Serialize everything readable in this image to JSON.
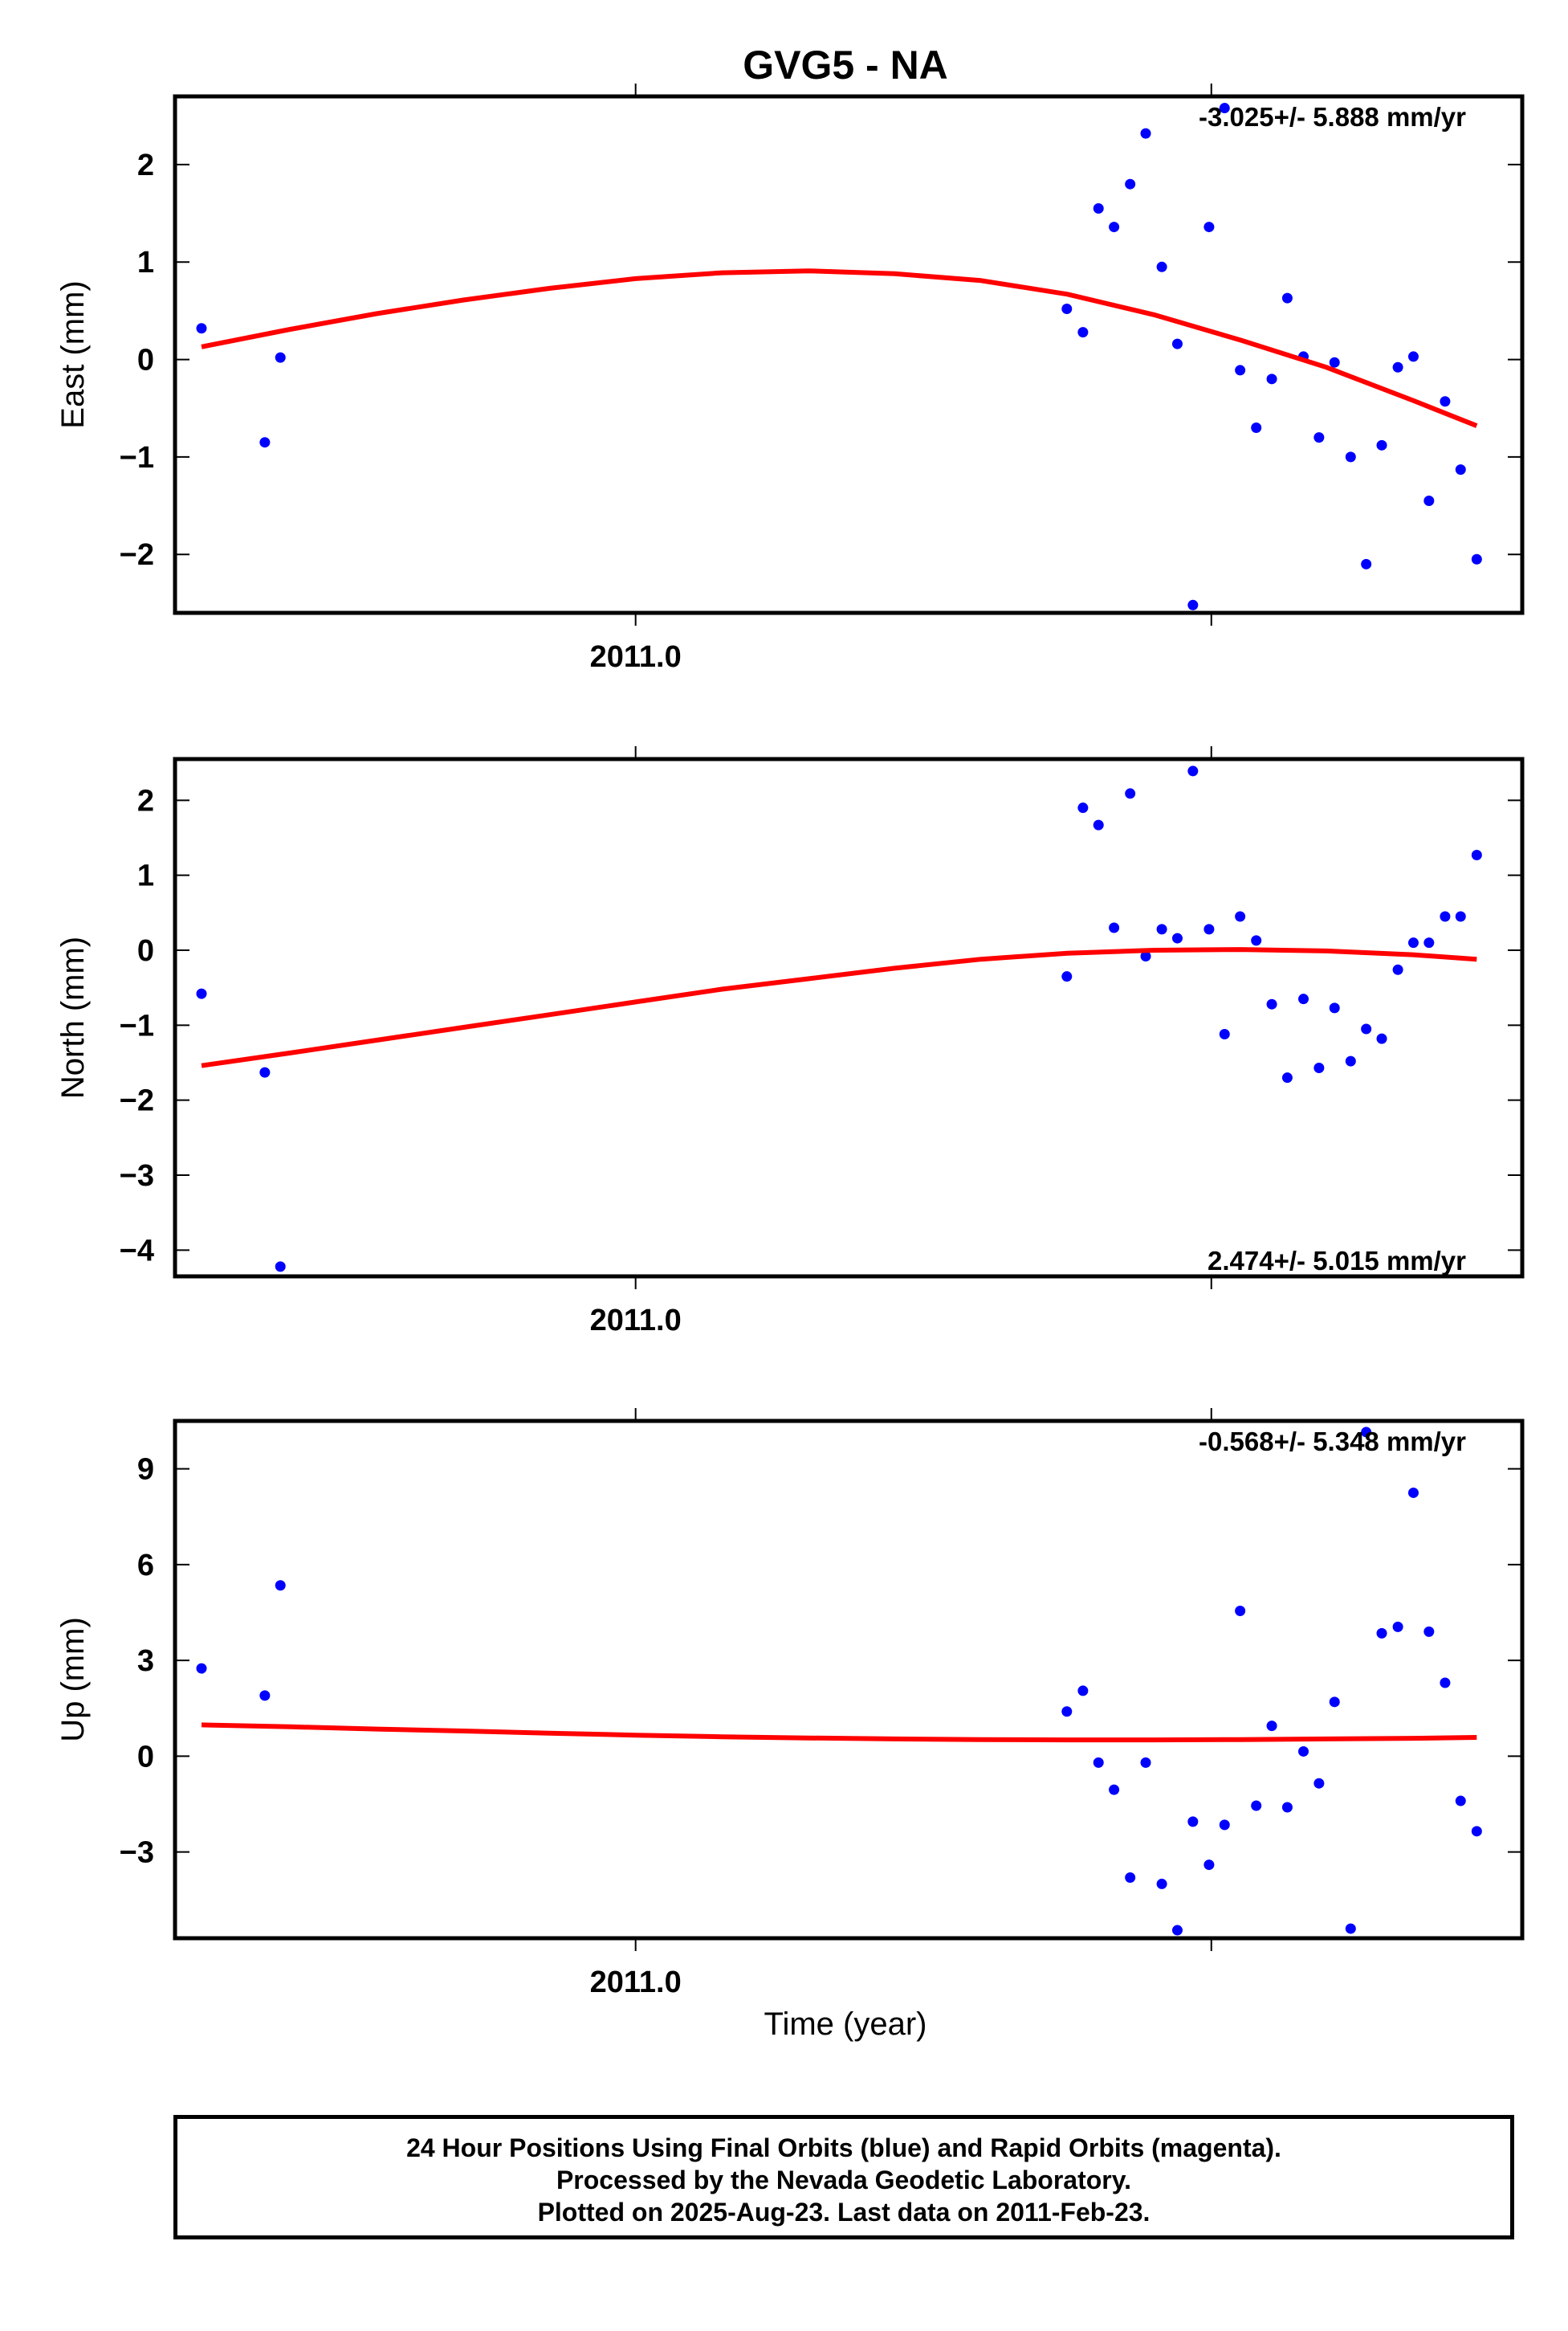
{
  "title": "GVG5 - NA",
  "x_axis_label": "Time (year)",
  "colors": {
    "final_orbits": "#0000ff",
    "rapid_orbits": "#ff00ff",
    "model_curve": "#ff0000"
  },
  "footer": {
    "line1": "24 Hour Positions Using Final Orbits (blue) and Rapid Orbits (magenta).",
    "line2": "Processed by the Nevada Geodetic Laboratory.",
    "line3": "Plotted on 2025-Aug-23. Last data on 2011-Feb-23."
  },
  "chart_data": [
    {
      "type": "scatter",
      "panel": "east",
      "ylabel": "East (mm)",
      "rate_label": "-3.025+/- 5.888 mm/yr",
      "rate_position": "top-right",
      "xlim": [
        2010.92,
        2011.154
      ],
      "ylim": [
        -2.6,
        2.7
      ],
      "xticks": [
        2011.0,
        2011.1
      ],
      "xtick_labels": [
        "2011.0",
        ""
      ],
      "yticks": [
        -2,
        -1,
        0,
        1,
        2
      ],
      "ytick_labels": [
        "−2",
        "−1",
        "0",
        "1",
        "2"
      ],
      "grid": false,
      "series": [
        {
          "x": [
            2010.9246,
            2010.9356,
            2010.9383,
            2011.0749,
            2011.0777,
            2011.0804,
            2011.0831,
            2011.0859,
            2011.0886,
            2011.0914,
            2011.0941,
            2011.0968,
            2011.0996,
            2011.1023,
            2011.105,
            2011.1078,
            2011.1105,
            2011.1132,
            2011.116,
            2011.1187,
            2011.1214,
            2011.1242,
            2011.1269,
            2011.1296,
            2011.1324,
            2011.1351,
            2011.1378,
            2011.1406,
            2011.1433,
            2011.1461
          ],
          "y": [
            0.32,
            -0.85,
            0.02,
            0.52,
            0.28,
            1.55,
            1.36,
            1.8,
            2.32,
            0.95,
            0.16,
            -2.52,
            1.36,
            2.58,
            -0.11,
            -0.7,
            -0.2,
            0.63,
            0.03,
            -0.8,
            -0.03,
            -1.0,
            -2.1,
            -0.88,
            -0.08,
            0.03,
            -1.45,
            -0.43,
            -1.13,
            -2.05
          ]
        }
      ],
      "model": {
        "x": [
          2010.9246,
          2010.94,
          2010.955,
          2010.97,
          2010.985,
          2011.0,
          2011.015,
          2011.03,
          2011.045,
          2011.06,
          2011.075,
          2011.09,
          2011.105,
          2011.12,
          2011.135,
          2011.1461
        ],
        "y": [
          0.13,
          0.31,
          0.47,
          0.61,
          0.73,
          0.83,
          0.89,
          0.91,
          0.88,
          0.81,
          0.67,
          0.46,
          0.2,
          -0.08,
          -0.42,
          -0.68
        ]
      }
    },
    {
      "type": "scatter",
      "panel": "north",
      "ylabel": "North (mm)",
      "rate_label": "2.474+/- 5.015 mm/yr",
      "rate_position": "bottom-right",
      "xlim": [
        2010.92,
        2011.154
      ],
      "ylim": [
        -4.35,
        2.55
      ],
      "xticks": [
        2011.0,
        2011.1
      ],
      "xtick_labels": [
        "2011.0",
        ""
      ],
      "yticks": [
        -4,
        -3,
        -2,
        -1,
        0,
        1,
        2
      ],
      "ytick_labels": [
        "−4",
        "−3",
        "−2",
        "−1",
        "0",
        "1",
        "2"
      ],
      "grid": false,
      "series": [
        {
          "x": [
            2010.9246,
            2010.9356,
            2010.9383,
            2011.0749,
            2011.0777,
            2011.0804,
            2011.0831,
            2011.0859,
            2011.0886,
            2011.0914,
            2011.0941,
            2011.0968,
            2011.0996,
            2011.1023,
            2011.105,
            2011.1078,
            2011.1105,
            2011.1132,
            2011.116,
            2011.1187,
            2011.1214,
            2011.1242,
            2011.1269,
            2011.1296,
            2011.1324,
            2011.1351,
            2011.1378,
            2011.1406,
            2011.1433,
            2011.1461
          ],
          "y": [
            -0.58,
            -1.63,
            -4.22,
            -0.35,
            1.9,
            1.67,
            0.3,
            2.09,
            -0.08,
            0.28,
            0.16,
            2.39,
            0.28,
            -1.12,
            0.45,
            0.13,
            -0.72,
            -1.7,
            -0.65,
            -1.57,
            -0.77,
            -1.48,
            -1.05,
            -1.18,
            -0.26,
            0.1,
            0.1,
            0.45,
            0.45,
            1.27
          ]
        }
      ],
      "model": {
        "x": [
          2010.9246,
          2010.94,
          2010.955,
          2010.97,
          2010.985,
          2011.0,
          2011.015,
          2011.03,
          2011.045,
          2011.06,
          2011.075,
          2011.09,
          2011.105,
          2011.12,
          2011.135,
          2011.1461
        ],
        "y": [
          -1.54,
          -1.37,
          -1.2,
          -1.03,
          -0.86,
          -0.69,
          -0.52,
          -0.38,
          -0.24,
          -0.12,
          -0.04,
          0.0,
          0.01,
          -0.01,
          -0.06,
          -0.12
        ]
      }
    },
    {
      "type": "scatter",
      "panel": "up",
      "ylabel": "Up (mm)",
      "rate_label": "-0.568+/- 5.348 mm/yr",
      "rate_position": "top-right",
      "xlim": [
        2010.92,
        2011.154
      ],
      "ylim": [
        -5.7,
        10.5
      ],
      "xticks": [
        2011.0,
        2011.1
      ],
      "xtick_labels": [
        "2011.0",
        ""
      ],
      "yticks": [
        -3,
        0,
        3,
        6,
        9
      ],
      "ytick_labels": [
        "−3",
        "0",
        "3",
        "6",
        "9"
      ],
      "grid": false,
      "series": [
        {
          "x": [
            2010.9246,
            2010.9356,
            2010.9383,
            2011.0749,
            2011.0777,
            2011.0804,
            2011.0831,
            2011.0859,
            2011.0886,
            2011.0914,
            2011.0941,
            2011.0968,
            2011.0996,
            2011.1023,
            2011.105,
            2011.1078,
            2011.1105,
            2011.1132,
            2011.116,
            2011.1187,
            2011.1214,
            2011.1242,
            2011.1269,
            2011.1296,
            2011.1324,
            2011.1351,
            2011.1378,
            2011.1406,
            2011.1433,
            2011.1461
          ],
          "y": [
            2.75,
            1.9,
            5.35,
            1.4,
            2.05,
            -0.2,
            -1.05,
            -3.8,
            -0.2,
            -4.0,
            -5.45,
            -2.05,
            -3.4,
            -2.15,
            4.55,
            -1.55,
            0.95,
            -1.6,
            0.15,
            -0.85,
            1.7,
            -5.4,
            10.15,
            3.85,
            4.05,
            8.25,
            3.9,
            2.3,
            -1.4,
            -2.35
          ]
        }
      ],
      "model": {
        "x": [
          2010.9246,
          2010.94,
          2010.955,
          2010.97,
          2010.985,
          2011.0,
          2011.015,
          2011.03,
          2011.045,
          2011.06,
          2011.075,
          2011.09,
          2011.105,
          2011.12,
          2011.135,
          2011.1461
        ],
        "y": [
          0.98,
          0.92,
          0.85,
          0.79,
          0.72,
          0.66,
          0.61,
          0.57,
          0.54,
          0.52,
          0.51,
          0.51,
          0.52,
          0.54,
          0.56,
          0.59
        ]
      }
    }
  ]
}
